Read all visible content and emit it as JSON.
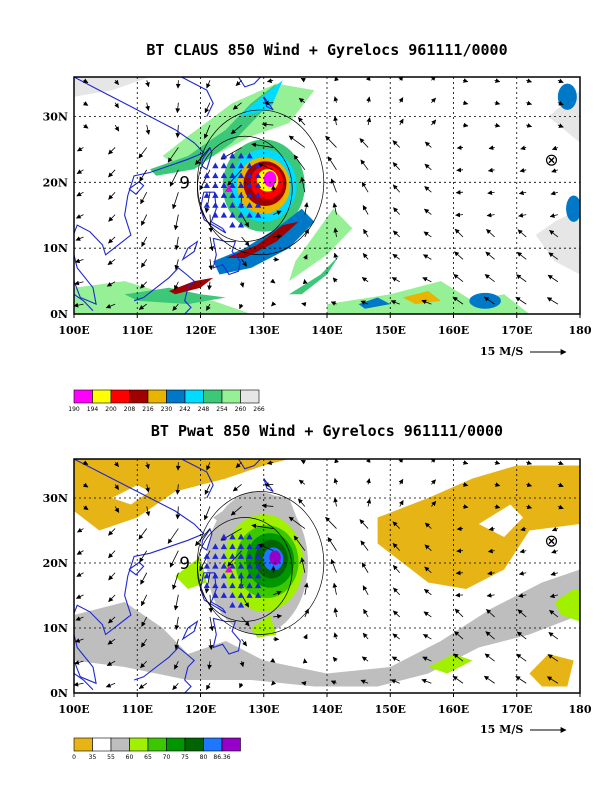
{
  "chart_data": [
    {
      "type": "heatmap",
      "title": "BT CLAUS 850 Wind + Gyrelocs 961111/0000",
      "field": "CLAUS brightness temperature",
      "overlays": [
        "850 hPa wind vectors",
        "gyre locations"
      ],
      "x_ticks": [
        "100E",
        "110E",
        "120E",
        "130E",
        "140E",
        "150E",
        "160E",
        "170E",
        "180"
      ],
      "y_ticks": [
        "0N",
        "10N",
        "20N",
        "30N"
      ],
      "xlim": [
        100,
        180
      ],
      "ylim": [
        0,
        36
      ],
      "grid": true,
      "reference_vector": "15 M/S",
      "colorbar": {
        "labels": [
          "190",
          "194",
          "200",
          "208",
          "216",
          "230",
          "242",
          "248",
          "254",
          "260",
          "266"
        ],
        "colors": [
          "#ff00ff",
          "#ffff00",
          "#ff0000",
          "#a00000",
          "#e8b400",
          "#0078c8",
          "#00dcff",
          "#3cc878",
          "#96f096",
          "#e6e6e6"
        ]
      },
      "symbols": [
        {
          "label": "9",
          "lon": 117.5,
          "lat": 20.0
        },
        {
          "label": "⊗",
          "lon": 175.5,
          "lat": 23.5
        }
      ]
    },
    {
      "type": "heatmap",
      "title": "BT Pwat 850 Wind + Gyrelocs 961111/0000",
      "field": "precipitable water",
      "overlays": [
        "850 hPa wind vectors",
        "gyre locations"
      ],
      "x_ticks": [
        "100E",
        "110E",
        "120E",
        "130E",
        "140E",
        "150E",
        "160E",
        "170E",
        "180"
      ],
      "y_ticks": [
        "0N",
        "10N",
        "20N",
        "30N"
      ],
      "xlim": [
        100,
        180
      ],
      "ylim": [
        0,
        36
      ],
      "grid": true,
      "reference_vector": "15 M/S",
      "colorbar": {
        "labels": [
          "0",
          "35",
          "55",
          "60",
          "65",
          "70",
          "75",
          "80",
          "86.36"
        ],
        "colors": [
          "#e6b414",
          "#ffffff",
          "#bebebe",
          "#a0f000",
          "#3cc800",
          "#009600",
          "#006400",
          "#1e78ff",
          "#9600c8"
        ]
      },
      "symbols": [
        {
          "label": "9",
          "lon": 117.5,
          "lat": 20.0
        },
        {
          "label": "⊗",
          "lon": 175.5,
          "lat": 23.5
        }
      ]
    }
  ]
}
